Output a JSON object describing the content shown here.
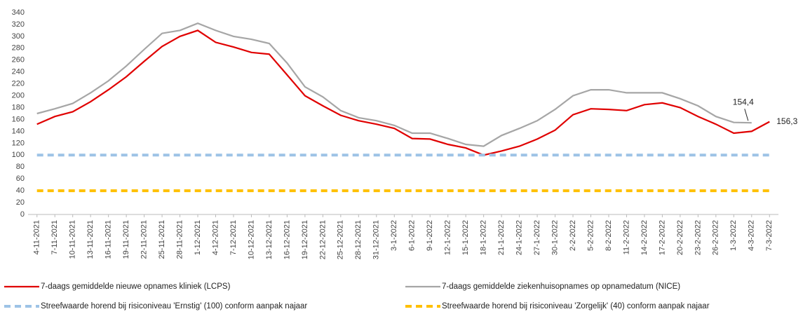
{
  "chart_data": {
    "type": "line",
    "categories": [
      "4-11-2021",
      "7-11-2021",
      "10-11-2021",
      "13-11-2021",
      "16-11-2021",
      "19-11-2021",
      "22-11-2021",
      "25-11-2021",
      "28-11-2021",
      "1-12-2021",
      "4-12-2021",
      "7-12-2021",
      "10-12-2021",
      "13-12-2021",
      "16-12-2021",
      "19-12-2021",
      "22-12-2021",
      "25-12-2021",
      "28-12-2021",
      "31-12-2021",
      "3-1-2022",
      "6-1-2022",
      "9-1-2022",
      "12-1-2022",
      "15-1-2022",
      "18-1-2022",
      "21-1-2022",
      "24-1-2022",
      "27-1-2022",
      "30-1-2022",
      "2-2-2022",
      "5-2-2022",
      "8-2-2022",
      "11-2-2022",
      "14-2-2022",
      "17-2-2022",
      "20-2-2022",
      "23-2-2022",
      "26-2-2022",
      "1-3-2022",
      "4-3-2022",
      "7-3-2022"
    ],
    "series": [
      {
        "name": "7-daags gemiddelde nieuwe opnames kliniek (LCPS)",
        "color": "#e00000",
        "dash": false,
        "values": [
          152,
          165,
          173,
          190,
          210,
          232,
          258,
          283,
          300,
          310,
          290,
          282,
          273,
          270,
          235,
          200,
          183,
          167,
          158,
          152,
          145,
          128,
          127,
          118,
          112,
          100,
          107,
          115,
          127,
          142,
          168,
          178,
          177,
          175,
          185,
          188,
          180,
          165,
          152,
          137,
          140,
          156.3
        ],
        "value_labels": [
          null,
          null,
          null,
          null,
          null,
          null,
          null,
          null,
          null,
          null,
          null,
          null,
          null,
          null,
          null,
          null,
          null,
          null,
          null,
          null,
          null,
          null,
          null,
          null,
          null,
          null,
          null,
          null,
          null,
          null,
          null,
          null,
          null,
          null,
          null,
          null,
          null,
          null,
          null,
          null,
          null,
          "156,3"
        ]
      },
      {
        "name": "7-daags gemiddelde ziekenhuisopnames op opnamedatum (NICE)",
        "color": "#a6a6a6",
        "dash": false,
        "values": [
          170,
          178,
          187,
          205,
          225,
          250,
          278,
          305,
          310,
          322,
          310,
          300,
          295,
          288,
          255,
          215,
          198,
          175,
          163,
          158,
          150,
          137,
          137,
          128,
          118,
          115,
          133,
          145,
          158,
          177,
          200,
          210,
          210,
          205,
          205,
          205,
          195,
          183,
          165,
          155,
          154.4,
          null
        ],
        "value_labels": [
          null,
          null,
          null,
          null,
          null,
          null,
          null,
          null,
          null,
          null,
          null,
          null,
          null,
          null,
          null,
          null,
          null,
          null,
          null,
          null,
          null,
          null,
          null,
          null,
          null,
          null,
          null,
          null,
          null,
          null,
          null,
          null,
          null,
          null,
          null,
          null,
          null,
          null,
          null,
          null,
          "154,4",
          null
        ]
      },
      {
        "name": "Streefwaarde horend bij risiconiveau 'Ernstig' (100) conform aanpak najaar",
        "color": "#9dc3e6",
        "dash": true,
        "values": [
          100,
          100,
          100,
          100,
          100,
          100,
          100,
          100,
          100,
          100,
          100,
          100,
          100,
          100,
          100,
          100,
          100,
          100,
          100,
          100,
          100,
          100,
          100,
          100,
          100,
          100,
          100,
          100,
          100,
          100,
          100,
          100,
          100,
          100,
          100,
          100,
          100,
          100,
          100,
          100,
          100,
          100
        ]
      },
      {
        "name": "Streefwaarde horend bij risiconiveau 'Zorgelijk' (40) conform aanpak najaar",
        "color": "#ffc000",
        "dash": true,
        "values": [
          40,
          40,
          40,
          40,
          40,
          40,
          40,
          40,
          40,
          40,
          40,
          40,
          40,
          40,
          40,
          40,
          40,
          40,
          40,
          40,
          40,
          40,
          40,
          40,
          40,
          40,
          40,
          40,
          40,
          40,
          40,
          40,
          40,
          40,
          40,
          40,
          40,
          40,
          40,
          40,
          40,
          40
        ]
      }
    ],
    "ylim": [
      0,
      340
    ],
    "yticks": [
      0,
      20,
      40,
      60,
      80,
      100,
      120,
      140,
      160,
      180,
      200,
      220,
      240,
      260,
      280,
      300,
      320,
      340
    ],
    "grid": false
  }
}
